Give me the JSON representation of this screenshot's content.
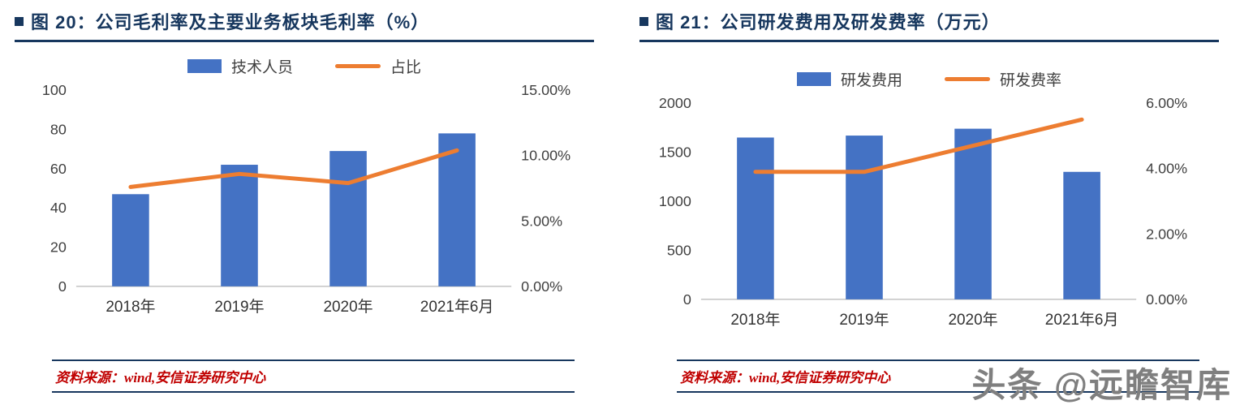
{
  "colors": {
    "bar": "#4472C4",
    "line": "#ED7D31",
    "title": "#17375E",
    "source_text": "#C00000",
    "axis_line": "#B7B7B7",
    "tick_text": "#404040",
    "watermark": "#7F7F7F"
  },
  "panels": [
    {
      "source": "资料来源：wind,安信证券研究中心"
    },
    {
      "source": "资料来源：wind,安信证券研究中心"
    }
  ],
  "watermark": "头条 @远瞻智库",
  "chart_data": [
    {
      "type": "bar+line",
      "title": "图 20：公司毛利率及主要业务板块毛利率（%）",
      "categories": [
        "2018年",
        "2019年",
        "2020年",
        "2021年6月"
      ],
      "series": [
        {
          "name": "技术人员",
          "type": "bar",
          "axis": "left",
          "values": [
            47,
            62,
            69,
            78
          ]
        },
        {
          "name": "占比",
          "type": "line",
          "axis": "right",
          "values": [
            7.6,
            8.6,
            7.9,
            10.4
          ]
        }
      ],
      "left_axis": {
        "min": 0,
        "max": 100,
        "ticks": [
          0,
          20,
          40,
          60,
          80,
          100
        ]
      },
      "right_axis": {
        "min": 0,
        "max": 15,
        "tick_values": [
          0,
          5,
          10,
          15
        ],
        "tick_labels": [
          "0.00%",
          "5.00%",
          "10.00%",
          "15.00%"
        ]
      },
      "grid": false,
      "legend_position": "top"
    },
    {
      "type": "bar+line",
      "title": "图 21：公司研发费用及研发费率（万元）",
      "categories": [
        "2018年",
        "2019年",
        "2020年",
        "2021年6月"
      ],
      "series": [
        {
          "name": "研发费用",
          "type": "bar",
          "axis": "left",
          "values": [
            1650,
            1670,
            1740,
            1300
          ]
        },
        {
          "name": "研发费率",
          "type": "line",
          "axis": "right",
          "values": [
            3.9,
            3.9,
            4.7,
            5.5
          ]
        }
      ],
      "left_axis": {
        "min": 0,
        "max": 2000,
        "ticks": [
          0,
          500,
          1000,
          1500,
          2000
        ]
      },
      "right_axis": {
        "min": 0,
        "max": 6,
        "tick_values": [
          0,
          2,
          4,
          6
        ],
        "tick_labels": [
          "0.00%",
          "2.00%",
          "4.00%",
          "6.00%"
        ]
      },
      "grid": false,
      "legend_position": "top"
    }
  ]
}
